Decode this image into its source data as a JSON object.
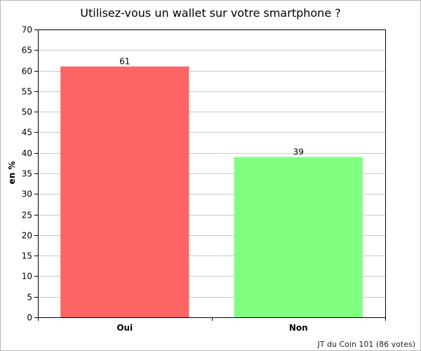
{
  "chart_data": {
    "type": "bar",
    "title": "Utilisez-vous un wallet sur votre smartphone ?",
    "ylabel": "en %",
    "xlabel": "",
    "ylim": [
      0,
      70
    ],
    "ytick_step": 5,
    "grid": true,
    "categories": [
      "Oui",
      "Non"
    ],
    "values": [
      61,
      39
    ],
    "value_labels": [
      "61",
      "39"
    ],
    "colors": [
      "#ff6464",
      "#80ff80"
    ],
    "source": "JT du Coin 101 (86 votes)"
  }
}
